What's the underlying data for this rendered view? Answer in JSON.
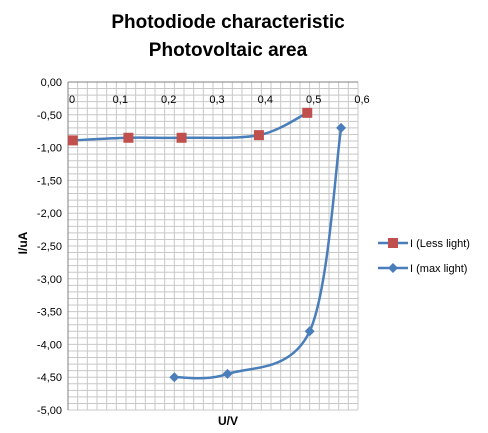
{
  "chart_data": {
    "type": "line",
    "title": [
      "Photodiode characteristic",
      "Photovoltaic area"
    ],
    "xlabel": "U/V",
    "ylabel": "I/uA",
    "xlim": [
      0,
      0.6
    ],
    "ylim": [
      -5,
      0
    ],
    "xticks": [
      "0",
      "0,1",
      "0,2",
      "0,3",
      "0,4",
      "0,5",
      "0,6"
    ],
    "yticks": [
      "0,00",
      "-0,50",
      "-1,00",
      "-1,50",
      "-2,00",
      "-2,50",
      "-3,00",
      "-3,50",
      "-4,00",
      "-4,50",
      "-5,00"
    ],
    "grid": true,
    "legend_position": "right",
    "series": [
      {
        "name": "I (Less light)",
        "color": "#C0504D",
        "line_color": "#4A7EBB",
        "marker": "square",
        "points": [
          [
            0.01,
            -0.89
          ],
          [
            0.125,
            -0.85
          ],
          [
            0.235,
            -0.85
          ],
          [
            0.395,
            -0.81
          ],
          [
            0.495,
            -0.47
          ]
        ]
      },
      {
        "name": "I (max light)",
        "color": "#4A7EBB",
        "line_color": "#4A7EBB",
        "marker": "diamond",
        "points": [
          [
            0.22,
            -4.5
          ],
          [
            0.33,
            -4.45
          ],
          [
            0.5,
            -3.8
          ],
          [
            0.565,
            -0.7
          ]
        ]
      }
    ]
  }
}
